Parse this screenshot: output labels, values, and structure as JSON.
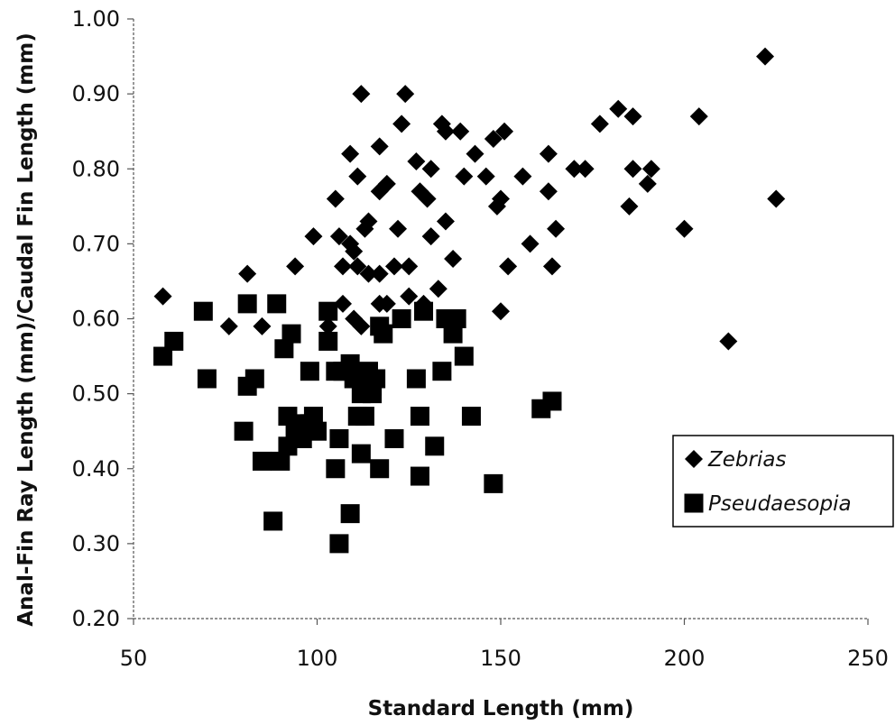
{
  "chart_data": {
    "type": "scatter",
    "xlabel": "Standard Length (mm)",
    "ylabel": "Anal-Fin Ray Length (mm)/Caudal Fin Length (mm)",
    "xlim": [
      50,
      250
    ],
    "ylim": [
      0.2,
      1.0
    ],
    "x_ticks": [
      "50",
      "100",
      "150",
      "200",
      "250"
    ],
    "y_ticks": [
      "0.20",
      "0.30",
      "0.40",
      "0.50",
      "0.60",
      "0.70",
      "0.80",
      "0.90",
      "1.00"
    ],
    "grid": false,
    "legend_position": "bottom-right",
    "series": [
      {
        "name": "Zebrias",
        "marker": "diamond",
        "color": "#000000",
        "points": [
          [
            58,
            0.63
          ],
          [
            76,
            0.59
          ],
          [
            81,
            0.66
          ],
          [
            85,
            0.59
          ],
          [
            94,
            0.67
          ],
          [
            99,
            0.71
          ],
          [
            103,
            0.59
          ],
          [
            103,
            0.61
          ],
          [
            105,
            0.76
          ],
          [
            106,
            0.71
          ],
          [
            107,
            0.67
          ],
          [
            107,
            0.62
          ],
          [
            109,
            0.7
          ],
          [
            109,
            0.82
          ],
          [
            110,
            0.6
          ],
          [
            110,
            0.69
          ],
          [
            111,
            0.79
          ],
          [
            111,
            0.67
          ],
          [
            112,
            0.9
          ],
          [
            112,
            0.59
          ],
          [
            113,
            0.72
          ],
          [
            114,
            0.73
          ],
          [
            114,
            0.66
          ],
          [
            117,
            0.66
          ],
          [
            117,
            0.62
          ],
          [
            117,
            0.77
          ],
          [
            117,
            0.83
          ],
          [
            119,
            0.78
          ],
          [
            119,
            0.62
          ],
          [
            121,
            0.67
          ],
          [
            122,
            0.72
          ],
          [
            123,
            0.86
          ],
          [
            124,
            0.9
          ],
          [
            125,
            0.67
          ],
          [
            125,
            0.63
          ],
          [
            127,
            0.81
          ],
          [
            128,
            0.77
          ],
          [
            129,
            0.62
          ],
          [
            130,
            0.76
          ],
          [
            131,
            0.8
          ],
          [
            131,
            0.71
          ],
          [
            133,
            0.64
          ],
          [
            134,
            0.86
          ],
          [
            135,
            0.85
          ],
          [
            135,
            0.73
          ],
          [
            137,
            0.68
          ],
          [
            139,
            0.85
          ],
          [
            140,
            0.79
          ],
          [
            143,
            0.82
          ],
          [
            146,
            0.79
          ],
          [
            148,
            0.84
          ],
          [
            149,
            0.75
          ],
          [
            150,
            0.61
          ],
          [
            150,
            0.76
          ],
          [
            151,
            0.85
          ],
          [
            152,
            0.67
          ],
          [
            156,
            0.79
          ],
          [
            158,
            0.7
          ],
          [
            163,
            0.82
          ],
          [
            163,
            0.77
          ],
          [
            164,
            0.67
          ],
          [
            165,
            0.72
          ],
          [
            170,
            0.8
          ],
          [
            173,
            0.8
          ],
          [
            177,
            0.86
          ],
          [
            182,
            0.88
          ],
          [
            185,
            0.75
          ],
          [
            186,
            0.87
          ],
          [
            186,
            0.8
          ],
          [
            190,
            0.78
          ],
          [
            191,
            0.8
          ],
          [
            200,
            0.72
          ],
          [
            204,
            0.87
          ],
          [
            212,
            0.57
          ],
          [
            222,
            0.95
          ],
          [
            225,
            0.76
          ]
        ]
      },
      {
        "name": "Pseudaesopia",
        "marker": "square",
        "color": "#000000",
        "points": [
          [
            58,
            0.55
          ],
          [
            61,
            0.57
          ],
          [
            69,
            0.61
          ],
          [
            70,
            0.52
          ],
          [
            80,
            0.45
          ],
          [
            81,
            0.62
          ],
          [
            81,
            0.51
          ],
          [
            83,
            0.52
          ],
          [
            85,
            0.41
          ],
          [
            88,
            0.33
          ],
          [
            89,
            0.62
          ],
          [
            90,
            0.41
          ],
          [
            91,
            0.56
          ],
          [
            92,
            0.43
          ],
          [
            92,
            0.47
          ],
          [
            93,
            0.58
          ],
          [
            94,
            0.45
          ],
          [
            95,
            0.46
          ],
          [
            96,
            0.44
          ],
          [
            98,
            0.53
          ],
          [
            98,
            0.46
          ],
          [
            99,
            0.47
          ],
          [
            100,
            0.45
          ],
          [
            103,
            0.61
          ],
          [
            103,
            0.57
          ],
          [
            105,
            0.53
          ],
          [
            105,
            0.4
          ],
          [
            106,
            0.3
          ],
          [
            106,
            0.44
          ],
          [
            107,
            0.53
          ],
          [
            109,
            0.34
          ],
          [
            109,
            0.54
          ],
          [
            110,
            0.52
          ],
          [
            111,
            0.47
          ],
          [
            112,
            0.42
          ],
          [
            112,
            0.5
          ],
          [
            113,
            0.47
          ],
          [
            114,
            0.53
          ],
          [
            115,
            0.51
          ],
          [
            115,
            0.5
          ],
          [
            116,
            0.52
          ],
          [
            117,
            0.4
          ],
          [
            117,
            0.59
          ],
          [
            118,
            0.58
          ],
          [
            121,
            0.44
          ],
          [
            123,
            0.6
          ],
          [
            127,
            0.52
          ],
          [
            128,
            0.47
          ],
          [
            128,
            0.39
          ],
          [
            129,
            0.61
          ],
          [
            132,
            0.43
          ],
          [
            134,
            0.53
          ],
          [
            135,
            0.6
          ],
          [
            137,
            0.58
          ],
          [
            138,
            0.6
          ],
          [
            140,
            0.55
          ],
          [
            142,
            0.47
          ],
          [
            148,
            0.38
          ],
          [
            161,
            0.48
          ],
          [
            164,
            0.49
          ]
        ]
      }
    ]
  }
}
